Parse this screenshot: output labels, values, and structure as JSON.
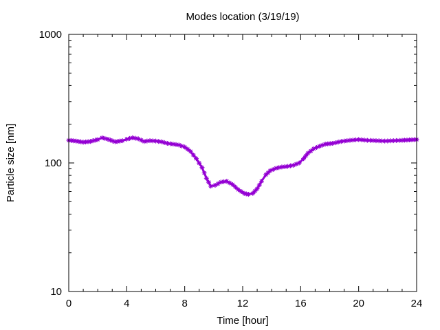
{
  "chart_data": {
    "type": "line",
    "title": "Modes location (3/19/19)",
    "xlabel": "Time [hour]",
    "ylabel": "Particle size [nm]",
    "xlim": [
      0,
      24
    ],
    "ylim": [
      10,
      1000
    ],
    "yscale": "log",
    "xticks": [
      0,
      4,
      8,
      12,
      16,
      20,
      24
    ],
    "xtick_labels": [
      "0",
      "4",
      "8",
      "12",
      "16",
      "20",
      "24"
    ],
    "yticks": [
      10,
      100,
      1000
    ],
    "ytick_labels": [
      "10",
      "100",
      "1000"
    ],
    "grid": false,
    "legend": "none",
    "series": [
      {
        "color": "#9400d3",
        "marker": "star",
        "x": [
          0,
          0.5,
          1,
          1.5,
          2,
          2.3,
          2.7,
          3.2,
          3.7,
          4,
          4.4,
          4.8,
          5.2,
          5.6,
          6,
          6.4,
          6.8,
          7.2,
          7.6,
          8,
          8.4,
          8.8,
          9.2,
          9.5,
          9.8,
          10.1,
          10.5,
          10.9,
          11.3,
          11.7,
          12.1,
          12.4,
          12.7,
          13,
          13.3,
          13.6,
          13.9,
          14.3,
          14.7,
          15.1,
          15.5,
          15.9,
          16.2,
          16.5,
          16.9,
          17.3,
          17.7,
          18.2,
          18.8,
          19.4,
          20,
          20.6,
          21.2,
          21.8,
          22.4,
          23,
          23.5,
          24
        ],
        "y": [
          150,
          148,
          145,
          147,
          152,
          157,
          153,
          146,
          149,
          153,
          157,
          154,
          147,
          149,
          148,
          146,
          142,
          140,
          138,
          133,
          123,
          108,
          92,
          76,
          66,
          67,
          71,
          72,
          68,
          62,
          58,
          57,
          58,
          63,
          72,
          81,
          87,
          91,
          93,
          94,
          96,
          100,
          108,
          119,
          129,
          135,
          140,
          142,
          147,
          150,
          152,
          150,
          149,
          148,
          149,
          150,
          151,
          152
        ]
      }
    ]
  }
}
